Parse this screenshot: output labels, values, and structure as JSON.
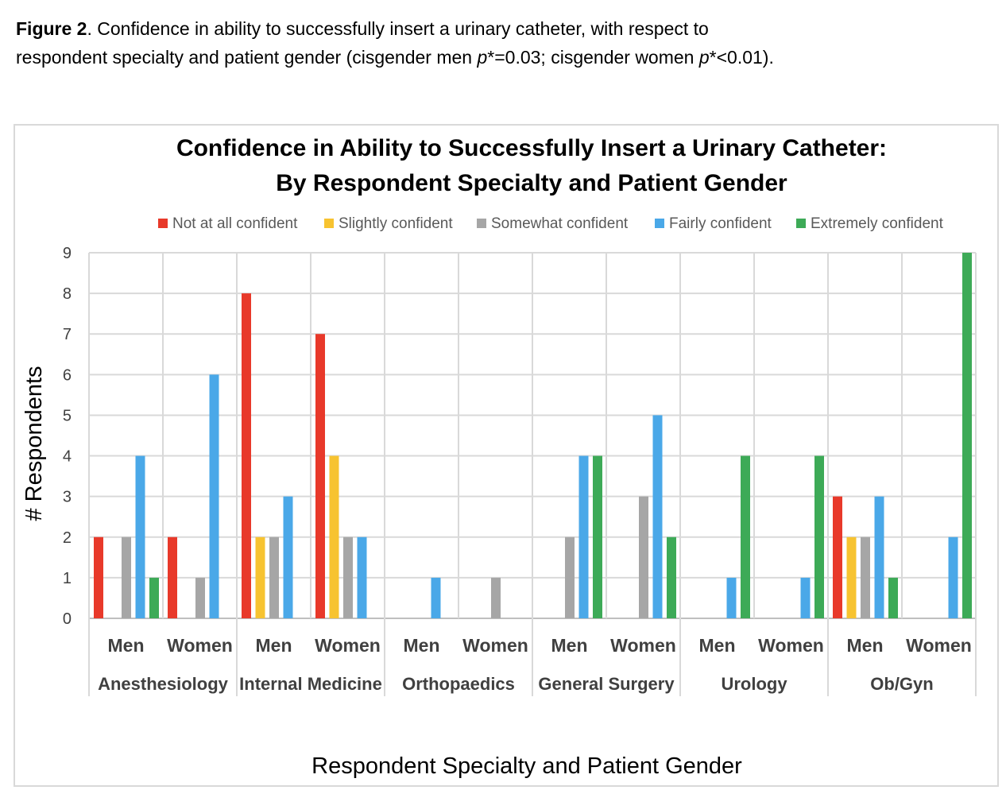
{
  "caption": {
    "label": "Figure 2",
    "line1_rest": ". Confidence in ability to successfully insert a urinary catheter, with respect to",
    "line2_a": "respondent specialty and patient gender (cisgender men ",
    "p1": "p",
    "line2_b": "*=0.03; cisgender women ",
    "p2": "p",
    "line2_c": "*<0.01)."
  },
  "chart_data": {
    "type": "bar",
    "title": [
      "Confidence in Ability to Successfully Insert a Urinary Catheter:",
      "By Respondent Specialty and Patient Gender"
    ],
    "xlabel": "Respondent Specialty and Patient Gender",
    "ylabel": "# Respondents",
    "ylim": [
      0,
      9
    ],
    "yticks": [
      0,
      1,
      2,
      3,
      4,
      5,
      6,
      7,
      8,
      9
    ],
    "grid": true,
    "legend_position": "top",
    "groups": [
      "Anesthesiology",
      "Internal Medicine",
      "Orthopaedics",
      "General Surgery",
      "Urology",
      "Ob/Gyn"
    ],
    "categories": [
      "Men",
      "Women",
      "Men",
      "Women",
      "Men",
      "Women",
      "Men",
      "Women",
      "Men",
      "Women",
      "Men",
      "Women"
    ],
    "series": [
      {
        "name": "Not at all confident",
        "color": "#e8392a",
        "values": [
          2,
          2,
          8,
          7,
          0,
          0,
          0,
          0,
          0,
          0,
          3,
          0
        ]
      },
      {
        "name": "Slightly confident",
        "color": "#f7c330",
        "values": [
          0,
          0,
          2,
          4,
          0,
          0,
          0,
          0,
          0,
          0,
          2,
          0
        ]
      },
      {
        "name": "Somewhat confident",
        "color": "#a6a6a6",
        "values": [
          2,
          1,
          2,
          2,
          0,
          1,
          2,
          3,
          0,
          0,
          2,
          0
        ]
      },
      {
        "name": "Fairly confident",
        "color": "#4aa8e8",
        "values": [
          4,
          6,
          3,
          2,
          1,
          0,
          4,
          5,
          1,
          1,
          3,
          2
        ]
      },
      {
        "name": "Extremely confident",
        "color": "#3daa57",
        "values": [
          1,
          0,
          0,
          0,
          0,
          0,
          4,
          2,
          4,
          4,
          1,
          9
        ]
      }
    ]
  }
}
